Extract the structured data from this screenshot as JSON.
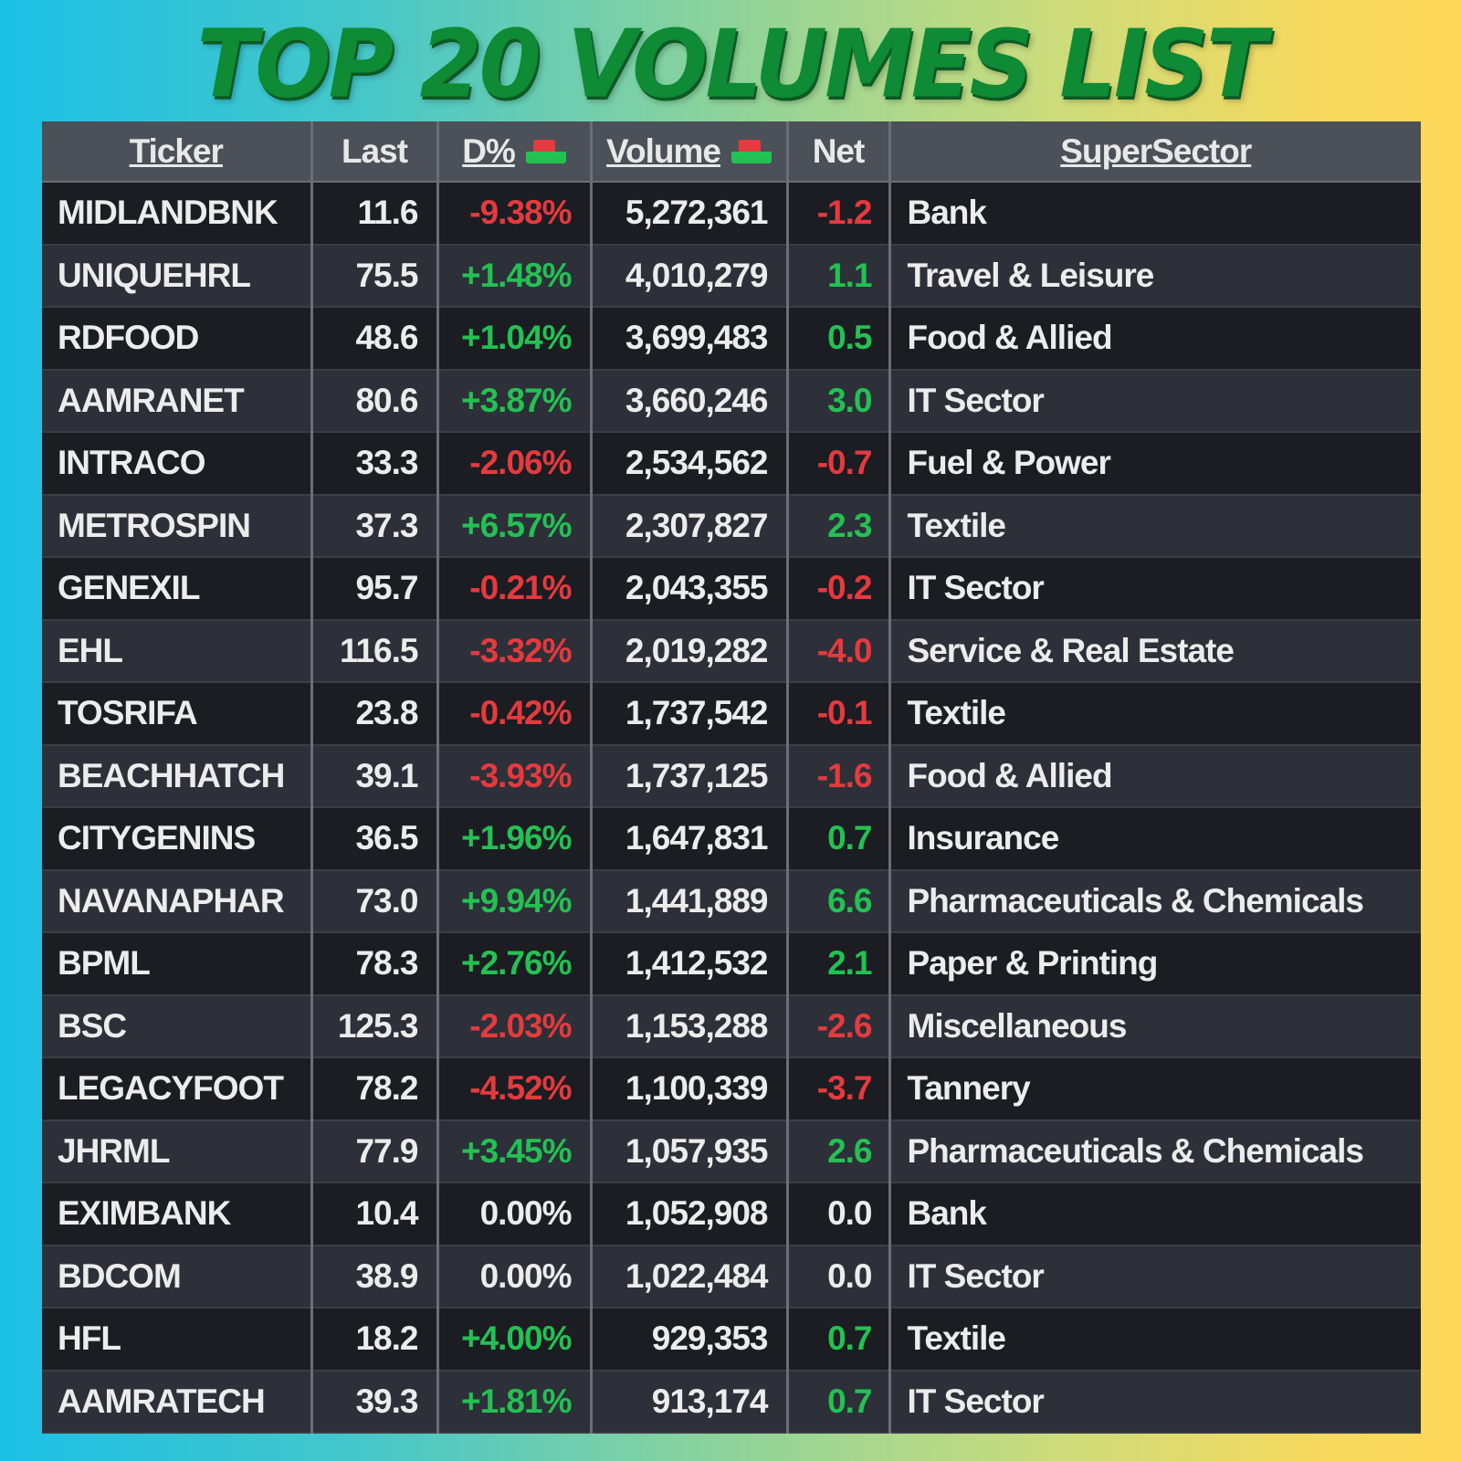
{
  "title": "TOP 20 VOLUMES  LIST",
  "headers": {
    "ticker": "Ticker",
    "last": "Last",
    "dpct": "D%",
    "volume": "Volume",
    "net": "Net",
    "sector": "SuperSector"
  },
  "sort_icon": "sort-indicator-icon",
  "colors": {
    "positive": "#23c153",
    "negative": "#e53a3e",
    "title": "#0f8a35"
  },
  "rows": [
    {
      "ticker": "MIDLANDBNK",
      "last": "11.6",
      "dpct": "-9.38%",
      "volume": "5,272,361",
      "net": "-1.2",
      "sector": "Bank",
      "trend": "neg"
    },
    {
      "ticker": "UNIQUEHRL",
      "last": "75.5",
      "dpct": "+1.48%",
      "volume": "4,010,279",
      "net": "1.1",
      "sector": "Travel & Leisure",
      "trend": "pos"
    },
    {
      "ticker": "RDFOOD",
      "last": "48.6",
      "dpct": "+1.04%",
      "volume": "3,699,483",
      "net": "0.5",
      "sector": "Food & Allied",
      "trend": "pos"
    },
    {
      "ticker": "AAMRANET",
      "last": "80.6",
      "dpct": "+3.87%",
      "volume": "3,660,246",
      "net": "3.0",
      "sector": "IT Sector",
      "trend": "pos"
    },
    {
      "ticker": "INTRACO",
      "last": "33.3",
      "dpct": "-2.06%",
      "volume": "2,534,562",
      "net": "-0.7",
      "sector": "Fuel & Power",
      "trend": "neg"
    },
    {
      "ticker": "METROSPIN",
      "last": "37.3",
      "dpct": "+6.57%",
      "volume": "2,307,827",
      "net": "2.3",
      "sector": "Textile",
      "trend": "pos"
    },
    {
      "ticker": "GENEXIL",
      "last": "95.7",
      "dpct": "-0.21%",
      "volume": "2,043,355",
      "net": "-0.2",
      "sector": "IT Sector",
      "trend": "neg"
    },
    {
      "ticker": "EHL",
      "last": "116.5",
      "dpct": "-3.32%",
      "volume": "2,019,282",
      "net": "-4.0",
      "sector": "Service & Real Estate",
      "trend": "neg"
    },
    {
      "ticker": "TOSRIFA",
      "last": "23.8",
      "dpct": "-0.42%",
      "volume": "1,737,542",
      "net": "-0.1",
      "sector": "Textile",
      "trend": "neg"
    },
    {
      "ticker": "BEACHHATCH",
      "last": "39.1",
      "dpct": "-3.93%",
      "volume": "1,737,125",
      "net": "-1.6",
      "sector": "Food & Allied",
      "trend": "neg"
    },
    {
      "ticker": "CITYGENINS",
      "last": "36.5",
      "dpct": "+1.96%",
      "volume": "1,647,831",
      "net": "0.7",
      "sector": "Insurance",
      "trend": "pos"
    },
    {
      "ticker": "NAVANAPHAR",
      "last": "73.0",
      "dpct": "+9.94%",
      "volume": "1,441,889",
      "net": "6.6",
      "sector": "Pharmaceuticals & Chemicals",
      "trend": "pos"
    },
    {
      "ticker": "BPML",
      "last": "78.3",
      "dpct": "+2.76%",
      "volume": "1,412,532",
      "net": "2.1",
      "sector": "Paper & Printing",
      "trend": "pos"
    },
    {
      "ticker": "BSC",
      "last": "125.3",
      "dpct": "-2.03%",
      "volume": "1,153,288",
      "net": "-2.6",
      "sector": "Miscellaneous",
      "trend": "neg"
    },
    {
      "ticker": "LEGACYFOOT",
      "last": "78.2",
      "dpct": "-4.52%",
      "volume": "1,100,339",
      "net": "-3.7",
      "sector": "Tannery",
      "trend": "neg"
    },
    {
      "ticker": "JHRML",
      "last": "77.9",
      "dpct": "+3.45%",
      "volume": "1,057,935",
      "net": "2.6",
      "sector": "Pharmaceuticals & Chemicals",
      "trend": "pos"
    },
    {
      "ticker": "EXIMBANK",
      "last": "10.4",
      "dpct": "0.00%",
      "volume": "1,052,908",
      "net": "0.0",
      "sector": "Bank",
      "trend": "flat"
    },
    {
      "ticker": "BDCOM",
      "last": "38.9",
      "dpct": "0.00%",
      "volume": "1,022,484",
      "net": "0.0",
      "sector": "IT Sector",
      "trend": "flat"
    },
    {
      "ticker": "HFL",
      "last": "18.2",
      "dpct": "+4.00%",
      "volume": "929,353",
      "net": "0.7",
      "sector": "Textile",
      "trend": "pos"
    },
    {
      "ticker": "AAMRATECH",
      "last": "39.3",
      "dpct": "+1.81%",
      "volume": "913,174",
      "net": "0.7",
      "sector": "IT Sector",
      "trend": "pos"
    }
  ]
}
